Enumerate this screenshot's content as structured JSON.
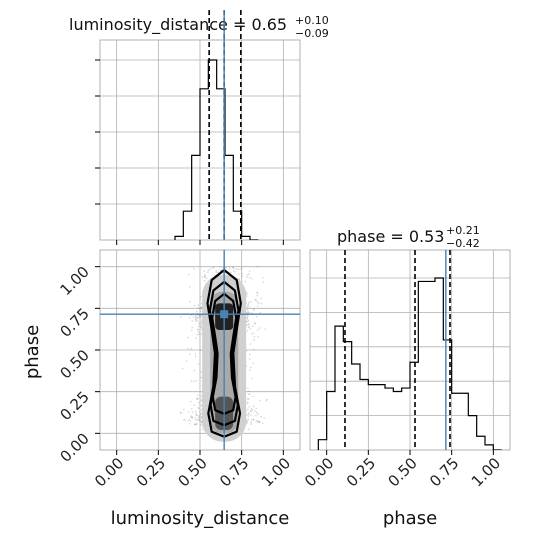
{
  "chart_data": {
    "type": "corner",
    "parameters": [
      "luminosity_distance",
      "phase"
    ],
    "truth": {
      "luminosity_distance": 0.645,
      "phase": 0.715
    },
    "panels": [
      {
        "type": "histogram",
        "parameter": "luminosity_distance",
        "title": {
          "prefix": "luminosity_distance = 0.65",
          "sup": "+0.10",
          "sub": "−0.09"
        },
        "xlim": [
          -0.1,
          1.1
        ],
        "ylim": [
          0,
          1
        ],
        "grid": true,
        "quantile_lines": [
          0.555,
          0.645,
          0.745
        ],
        "truth_line": 0.645,
        "bin_edges": [
          0.35,
          0.4,
          0.45,
          0.5,
          0.55,
          0.6,
          0.65,
          0.7,
          0.75,
          0.8,
          0.85
        ],
        "bin_heights": [
          0.02,
          0.16,
          0.47,
          0.84,
          1.0,
          0.84,
          0.47,
          0.16,
          0.02,
          0.0
        ],
        "show_x_tick_labels": false,
        "show_y_tick_labels": false
      },
      {
        "type": "contour_2d",
        "x_parameter": "luminosity_distance",
        "y_parameter": "phase",
        "xlim": [
          -0.1,
          1.1
        ],
        "ylim": [
          -0.1,
          1.1
        ],
        "grid": true,
        "x_ticks": [
          "0.00",
          "0.25",
          "0.50",
          "0.75",
          "1.00"
        ],
        "y_ticks": [
          "0.00",
          "0.25",
          "0.50",
          "0.75",
          "1.00"
        ],
        "x_tick_values": [
          0,
          0.25,
          0.5,
          0.75,
          1.0
        ],
        "y_tick_values": [
          0,
          0.25,
          0.5,
          0.75,
          1.0
        ],
        "xlabel": "luminosity_distance",
        "ylabel": "phase",
        "truth": [
          0.645,
          0.715
        ]
      },
      {
        "type": "histogram",
        "parameter": "phase",
        "title": {
          "prefix": "phase = 0.53",
          "sup": "+0.21",
          "sub": "−0.42"
        },
        "xlim": [
          -0.1,
          1.1
        ],
        "ylim": [
          0,
          1.1
        ],
        "grid": true,
        "quantile_lines": [
          0.11,
          0.53,
          0.74
        ],
        "truth_line": 0.715,
        "bin_edges": [
          -0.05,
          0.0,
          0.05,
          0.1,
          0.15,
          0.2,
          0.25,
          0.3,
          0.35,
          0.4,
          0.45,
          0.5,
          0.55,
          0.6,
          0.65,
          0.7,
          0.75,
          0.8,
          0.85,
          0.9,
          0.95,
          1.0,
          1.05
        ],
        "bin_heights": [
          0.06,
          0.34,
          0.72,
          0.63,
          0.5,
          0.41,
          0.38,
          0.38,
          0.36,
          0.34,
          0.36,
          0.51,
          0.98,
          0.98,
          1.0,
          0.64,
          0.33,
          0.33,
          0.2,
          0.08,
          0.03,
          0.0
        ],
        "xlabel": "phase",
        "x_ticks": [
          "0.00",
          "0.25",
          "0.50",
          "0.75",
          "1.00"
        ],
        "x_tick_values": [
          0,
          0.25,
          0.5,
          0.75,
          1.0
        ]
      }
    ]
  },
  "colors": {
    "hist_line": "#000000",
    "quantile_line": "#000000",
    "truth_line": "#4682b4",
    "grid": "#b0b0b0",
    "density": "#6b6b6b",
    "scatter": "#8a8a8a"
  }
}
